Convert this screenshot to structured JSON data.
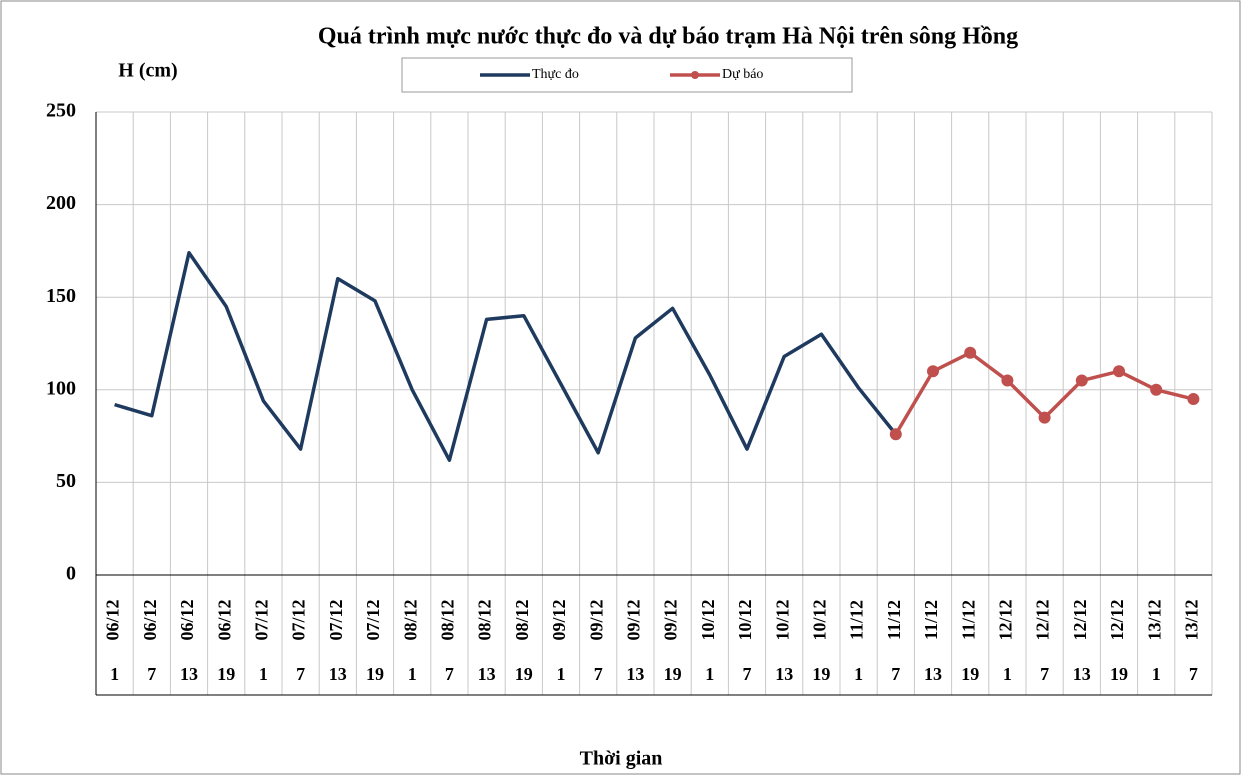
{
  "chart_data": {
    "type": "line",
    "title": "Quá trình  mực nước thực đo và dự báo trạm Hà Nội trên sông Hồng",
    "y_label": "H (cm)",
    "x_label": "Thời gian",
    "categories": [
      [
        "06/12",
        "1"
      ],
      [
        "06/12",
        "7"
      ],
      [
        "06/12",
        "13"
      ],
      [
        "06/12",
        "19"
      ],
      [
        "07/12",
        "1"
      ],
      [
        "07/12",
        "7"
      ],
      [
        "07/12",
        "13"
      ],
      [
        "07/12",
        "19"
      ],
      [
        "08/12",
        "1"
      ],
      [
        "08/12",
        "7"
      ],
      [
        "08/12",
        "13"
      ],
      [
        "08/12",
        "19"
      ],
      [
        "09/12",
        "1"
      ],
      [
        "09/12",
        "7"
      ],
      [
        "09/12",
        "13"
      ],
      [
        "09/12",
        "19"
      ],
      [
        "10/12",
        "1"
      ],
      [
        "10/12",
        "7"
      ],
      [
        "10/12",
        "13"
      ],
      [
        "10/12",
        "19"
      ],
      [
        "11/12",
        "1"
      ],
      [
        "11/12",
        "7"
      ],
      [
        "11/12",
        "13"
      ],
      [
        "11/12",
        "19"
      ],
      [
        "12/12",
        "1"
      ],
      [
        "12/12",
        "7"
      ],
      [
        "12/12",
        "13"
      ],
      [
        "12/12",
        "19"
      ],
      [
        "13/12",
        "1"
      ],
      [
        "13/12",
        "7"
      ]
    ],
    "series": [
      {
        "name": "Thực đo",
        "color": "#1f3a5f",
        "markers": false,
        "values": [
          92,
          86,
          174,
          145,
          94,
          68,
          160,
          148,
          100,
          62,
          138,
          140,
          103,
          66,
          128,
          144,
          108,
          68,
          118,
          130,
          101,
          76,
          null,
          null,
          null,
          null,
          null,
          null,
          null,
          null
        ]
      },
      {
        "name": "Dự báo",
        "color": "#c0504d",
        "markers": true,
        "values": [
          null,
          null,
          null,
          null,
          null,
          null,
          null,
          null,
          null,
          null,
          null,
          null,
          null,
          null,
          null,
          null,
          null,
          null,
          null,
          null,
          null,
          76,
          110,
          120,
          105,
          85,
          105,
          110,
          100,
          95
        ]
      }
    ],
    "ylim": [
      0,
      250
    ],
    "yticks": [
      0,
      50,
      100,
      150,
      200,
      250
    ],
    "grid": true
  }
}
